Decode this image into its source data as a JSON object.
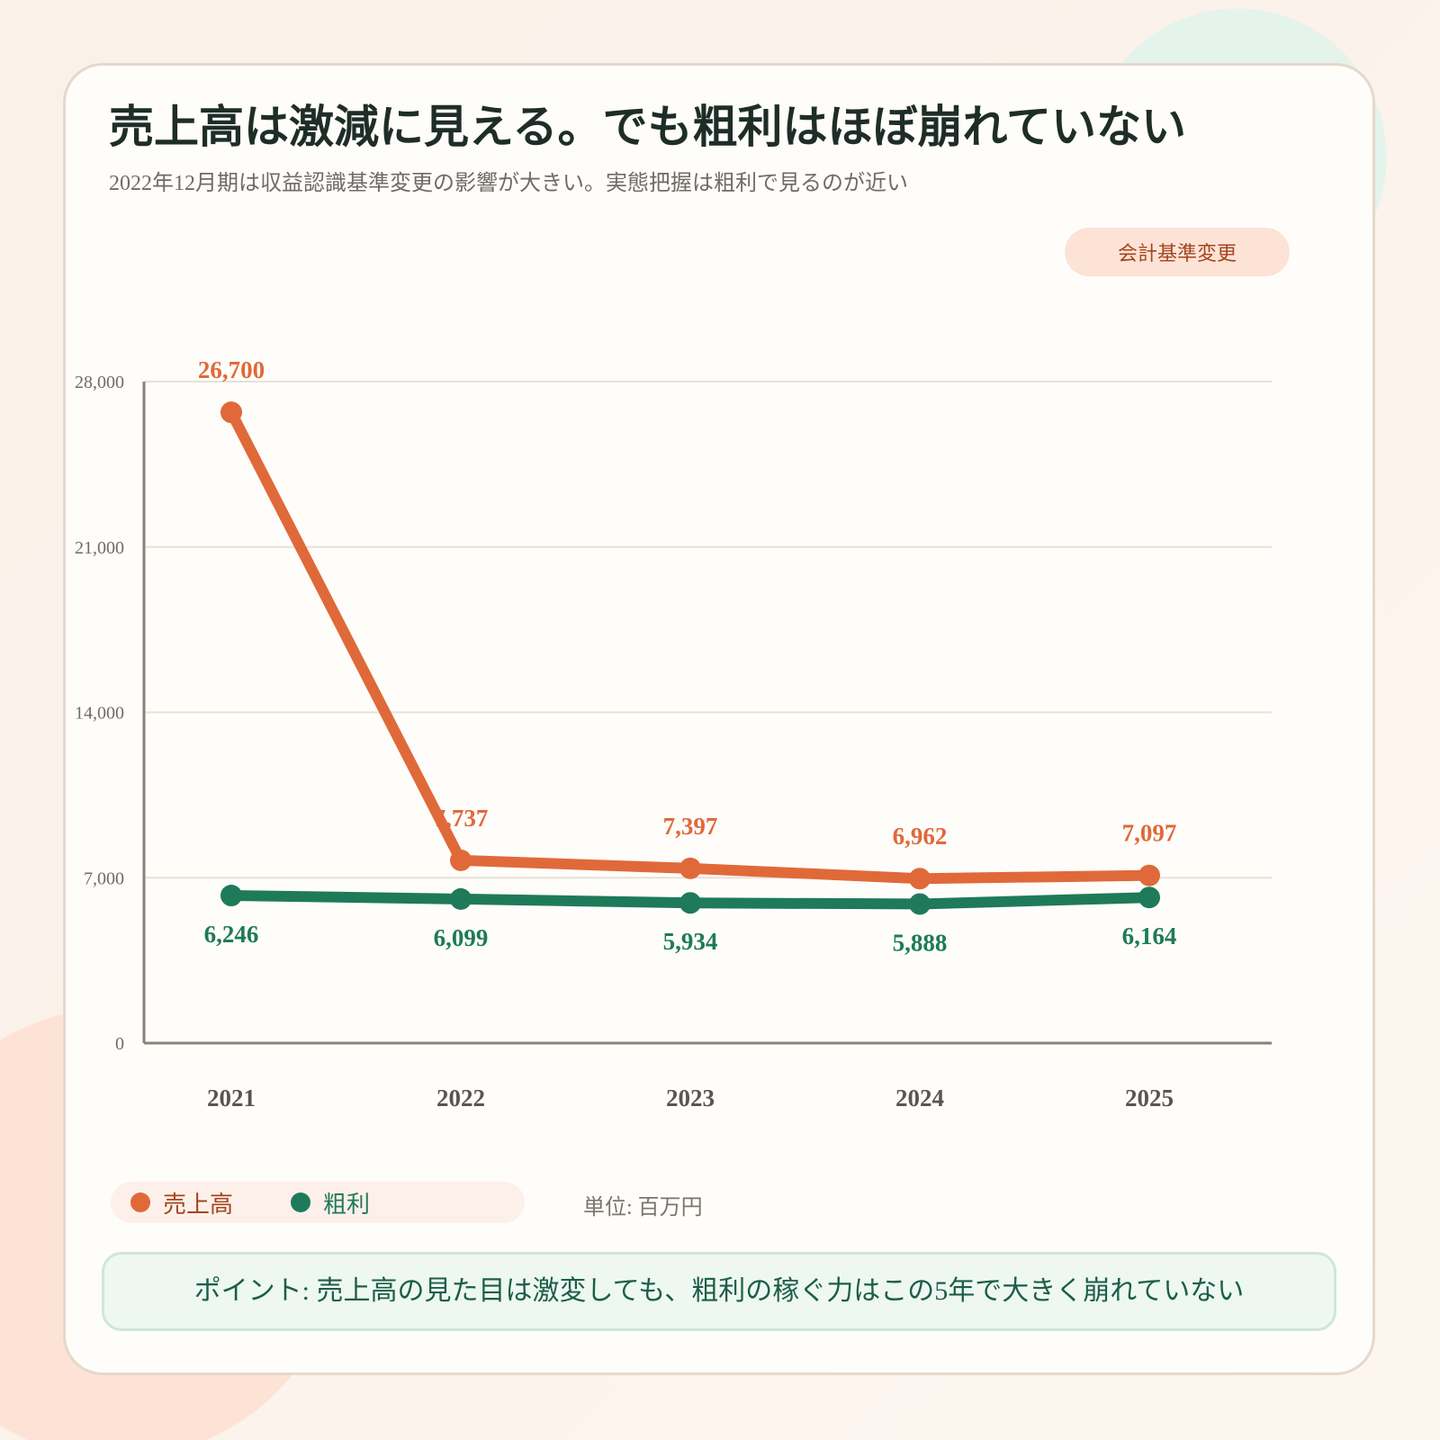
{
  "title": "売上高は激減に見える。でも粗利はほぼ崩れていない",
  "subtitle": "2022年12月期は収益認識基準変更の影響が大きい。実態把握は粗利で見るのが近い",
  "badge": "会計基準変更",
  "unit": "単位: 百万円",
  "point": "ポイント: 売上高の見た目は激変しても、粗利の稼ぐ力はこの5年で大きく崩れていない",
  "colors": {
    "revenue": "#e0693a",
    "gross_profit": "#1e7a5a",
    "axis": "#8a8178",
    "grid": "#e8e1d8"
  },
  "chart_data": {
    "type": "line",
    "categories": [
      "2021",
      "2022",
      "2023",
      "2024",
      "2025"
    ],
    "ylim": [
      0,
      28000
    ],
    "yticks": [
      0,
      7000,
      14000,
      21000,
      28000
    ],
    "ytick_labels": [
      "0",
      "7,000",
      "14,000",
      "21,000",
      "28,000"
    ],
    "grid": true,
    "legend": "bottom-left",
    "series": [
      {
        "name": "売上高",
        "values": [
          26700,
          7737,
          7397,
          6962,
          7097
        ],
        "labels": [
          "26,700",
          "7,737",
          "7,397",
          "6,962",
          "7,097"
        ]
      },
      {
        "name": "粗利",
        "values": [
          6246,
          6099,
          5934,
          5888,
          6164
        ],
        "labels": [
          "6,246",
          "6,099",
          "5,934",
          "5,888",
          "6,164"
        ]
      }
    ]
  }
}
